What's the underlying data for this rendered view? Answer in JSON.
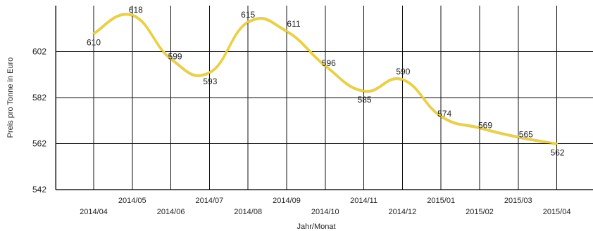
{
  "chart_data": {
    "type": "line",
    "title": "",
    "xlabel": "Jahr/Monat",
    "ylabel": "Preis pro Tonne in Euro",
    "ylim": [
      542,
      622
    ],
    "yticks": [
      542,
      562,
      582,
      602
    ],
    "grid": true,
    "legend": "none",
    "series": [
      {
        "color": "#f0d22a",
        "x": [
          "2014/04",
          "2014/05",
          "2014/06",
          "2014/07",
          "2014/08",
          "2014/09",
          "2014/10",
          "2014/11",
          "2014/12",
          "2015/01",
          "2015/02",
          "2015/03",
          "2015/04"
        ],
        "values": [
          610,
          618,
          599,
          593,
          615,
          611,
          596,
          585,
          590,
          574,
          569,
          565,
          562
        ],
        "labels": [
          "610",
          "618",
          "599",
          "593",
          "615",
          "611",
          "596",
          "585",
          "590",
          "574",
          "569",
          "565",
          "562"
        ]
      }
    ]
  }
}
